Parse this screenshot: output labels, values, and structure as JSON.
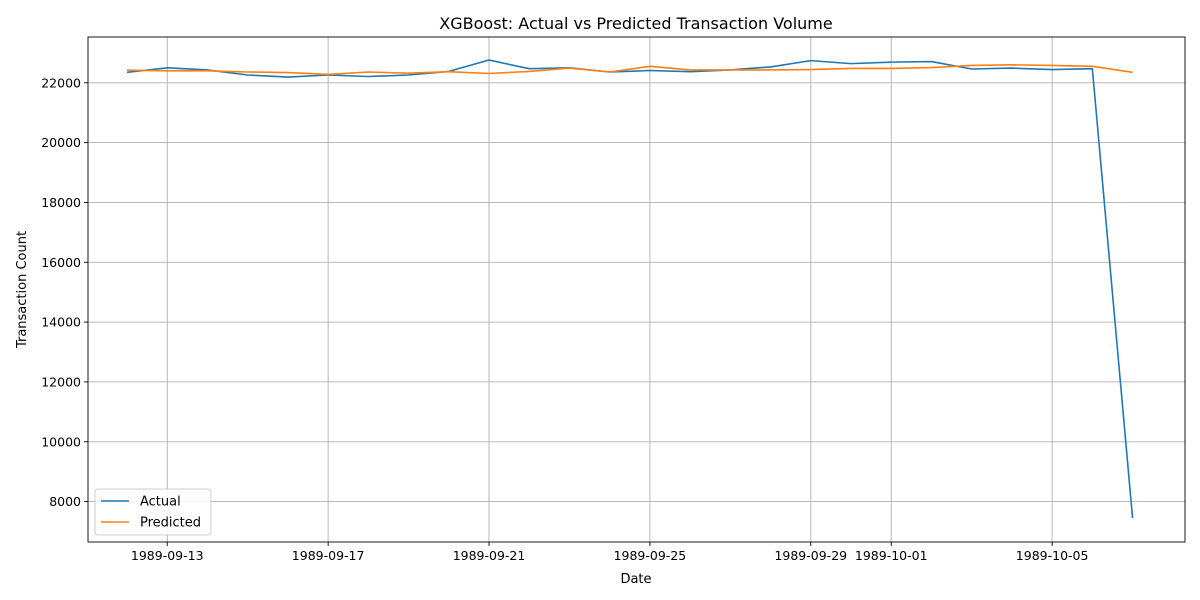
{
  "chart_data": {
    "type": "line",
    "title": "XGBoost: Actual vs Predicted Transaction Volume",
    "xlabel": "Date",
    "ylabel": "Transaction Count",
    "x": [
      "1989-09-12",
      "1989-09-13",
      "1989-09-14",
      "1989-09-15",
      "1989-09-16",
      "1989-09-17",
      "1989-09-18",
      "1989-09-19",
      "1989-09-20",
      "1989-09-21",
      "1989-09-22",
      "1989-09-23",
      "1989-09-24",
      "1989-09-25",
      "1989-09-26",
      "1989-09-27",
      "1989-09-28",
      "1989-09-29",
      "1989-09-30",
      "1989-10-01",
      "1989-10-02",
      "1989-10-03",
      "1989-10-04",
      "1989-10-05",
      "1989-10-06",
      "1989-10-07"
    ],
    "xlim": [
      "1989-09-11T00:43",
      "1989-10-08T07:17"
    ],
    "ylim": [
      6650,
      23530
    ],
    "xticks": [
      "1989-09-13",
      "1989-09-17",
      "1989-09-21",
      "1989-09-25",
      "1989-09-29",
      "1989-10-01",
      "1989-10-05"
    ],
    "yticks": [
      8000,
      10000,
      12000,
      14000,
      16000,
      18000,
      20000,
      22000
    ],
    "grid": true,
    "legend": "lower-left",
    "series": [
      {
        "name": "Actual",
        "color": "#1f77b4",
        "values": [
          22350,
          22500,
          22430,
          22260,
          22190,
          22260,
          22210,
          22260,
          22380,
          22760,
          22470,
          22500,
          22360,
          22410,
          22370,
          22430,
          22530,
          22740,
          22640,
          22690,
          22710,
          22460,
          22490,
          22440,
          22470,
          7450
        ]
      },
      {
        "name": "Predicted",
        "color": "#ff7f0e",
        "values": [
          22420,
          22400,
          22400,
          22360,
          22340,
          22280,
          22360,
          22320,
          22370,
          22310,
          22380,
          22490,
          22360,
          22550,
          22430,
          22430,
          22430,
          22440,
          22480,
          22480,
          22510,
          22580,
          22600,
          22580,
          22550,
          22350
        ]
      }
    ]
  }
}
